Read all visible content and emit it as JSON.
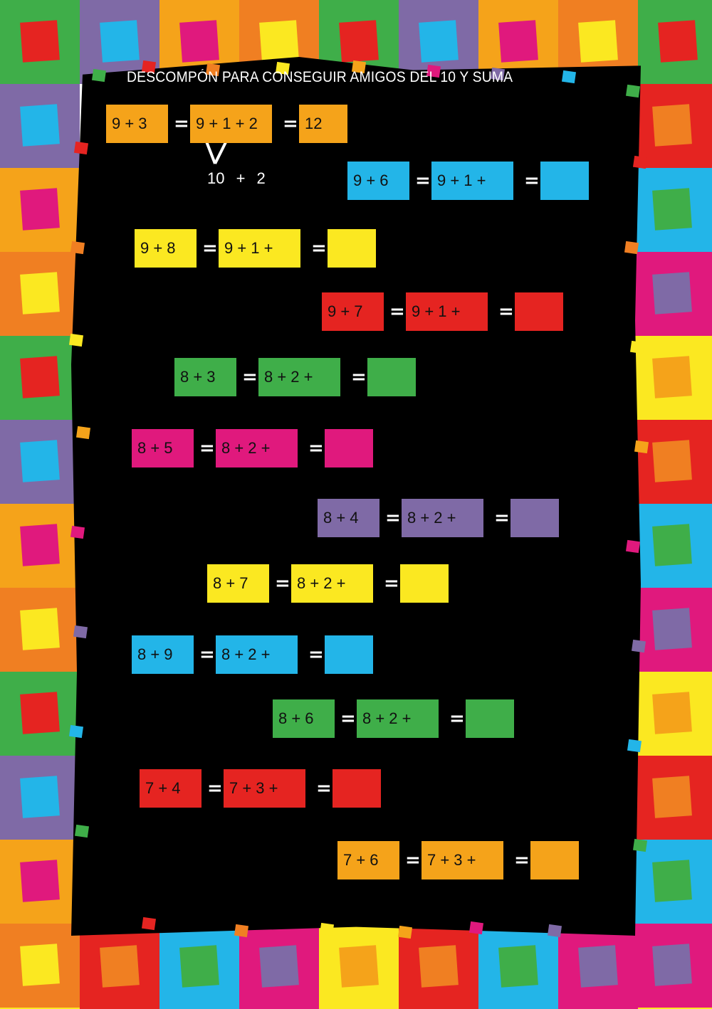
{
  "title": "DESCOMPÓN PARA CONSEGUIR AMIGOS DEL 10 Y SUMA",
  "palette": [
    "#3fae49",
    "#fbe821",
    "#7f6aa6",
    "#e52421",
    "#f5a31a",
    "#23b5e8",
    "#f07f22",
    "#e0197d"
  ],
  "colors": {
    "orange": "#f5a31a",
    "blue": "#23b5e8",
    "yellow": "#fbe821",
    "red": "#e52421",
    "green": "#3fae49",
    "magenta": "#e0197d",
    "purple": "#7f6aa6",
    "background": "#000000"
  },
  "equals": "=",
  "example": {
    "split": "10 + 2"
  },
  "exercises": [
    {
      "color": "orange",
      "sum": "9 + 3",
      "decomposed": "9 + 1 + 2",
      "answer": "12"
    },
    {
      "color": "blue",
      "sum": "9 + 6",
      "decomposed": "9 + 1 +",
      "answer": ""
    },
    {
      "color": "yellow",
      "sum": "9 + 8",
      "decomposed": "9 + 1 +",
      "answer": ""
    },
    {
      "color": "red",
      "sum": "9 + 7",
      "decomposed": "9 + 1 +",
      "answer": ""
    },
    {
      "color": "green",
      "sum": "8 + 3",
      "decomposed": "8 + 2 +",
      "answer": ""
    },
    {
      "color": "magenta",
      "sum": "8 + 5",
      "decomposed": "8 + 2 +",
      "answer": ""
    },
    {
      "color": "purple",
      "sum": "8 + 4",
      "decomposed": "8 + 2 +",
      "answer": ""
    },
    {
      "color": "yellow",
      "sum": "8 + 7",
      "decomposed": "8 + 2 +",
      "answer": ""
    },
    {
      "color": "blue",
      "sum": "8 + 9",
      "decomposed": "8 + 2 +",
      "answer": ""
    },
    {
      "color": "green",
      "sum": "8 + 6",
      "decomposed": "8 + 2 +",
      "answer": ""
    },
    {
      "color": "red",
      "sum": "7 + 4",
      "decomposed": "7 + 3 +",
      "answer": ""
    },
    {
      "color": "orange",
      "sum": "7 + 6",
      "decomposed": "7 + 3 +",
      "answer": ""
    }
  ]
}
